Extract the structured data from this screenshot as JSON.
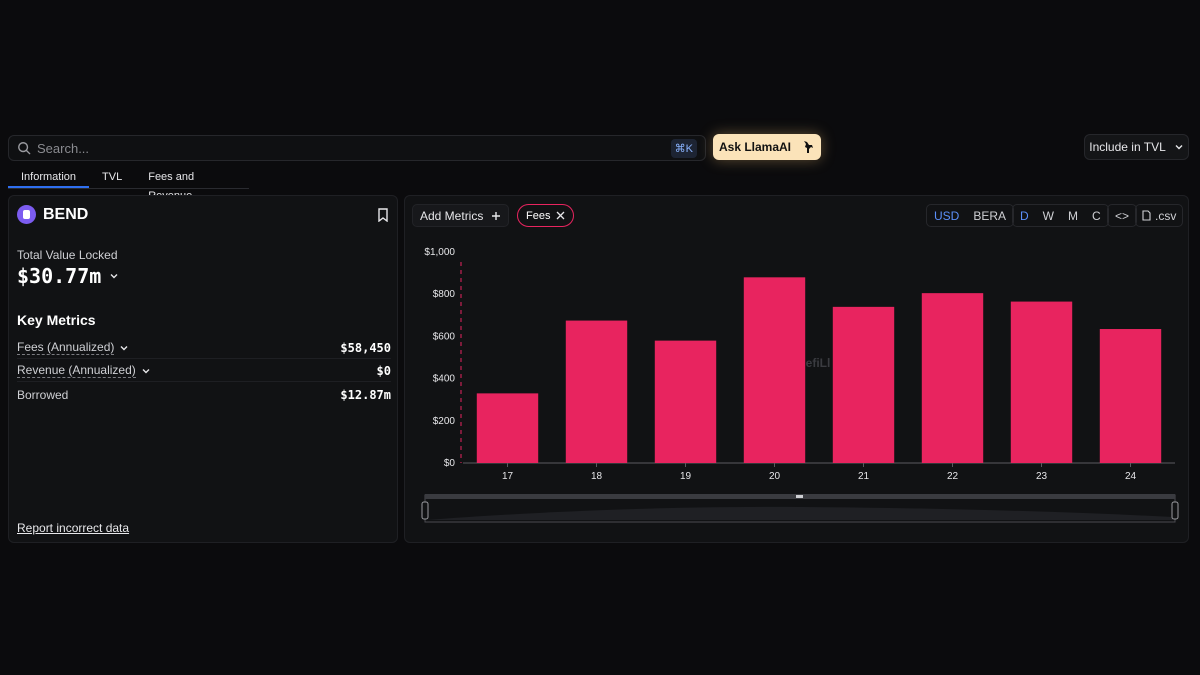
{
  "search": {
    "placeholder": "Search...",
    "shortcut": "⌘K"
  },
  "ask_button": {
    "label": "Ask LlamaAI"
  },
  "include_dropdown": {
    "label": "Include in TVL"
  },
  "tabs": [
    {
      "label": "Information",
      "active": true
    },
    {
      "label": "TVL",
      "active": false
    },
    {
      "label": "Fees and Revenue",
      "active": false
    }
  ],
  "protocol": {
    "name": "BEND",
    "tvl_label": "Total Value Locked",
    "tvl_value": "$30.77m",
    "key_metrics_title": "Key Metrics",
    "metrics": [
      {
        "label": "Fees (Annualized)",
        "value": "$58,450"
      },
      {
        "label": "Revenue (Annualized)",
        "value": "$0"
      },
      {
        "label": "Borrowed",
        "value": "$12.87m"
      }
    ],
    "report_link": "Report incorrect data"
  },
  "chart_controls": {
    "add_metrics": "Add Metrics",
    "metric_chip": "Fees",
    "currencies": [
      "USD",
      "BERA"
    ],
    "selected_currency": "USD",
    "periods": [
      "D",
      "W",
      "M",
      "C"
    ],
    "selected_period": "D",
    "embed": "<>",
    "csv": ".csv"
  },
  "colors": {
    "bar": "#e8245f",
    "accent": "#2f6ff0",
    "ask_bg": "#fbe3b9"
  },
  "chart_data": {
    "type": "bar",
    "categories": [
      "17",
      "18",
      "19",
      "20",
      "21",
      "22",
      "23",
      "24"
    ],
    "values": [
      330,
      675,
      580,
      880,
      740,
      805,
      765,
      635
    ],
    "ylim": [
      0,
      1000
    ],
    "y_ticks": [
      "$0",
      "$200",
      "$400",
      "$600",
      "$800",
      "$1,000"
    ],
    "watermark": "efiLl",
    "grid": false,
    "legend": "none"
  }
}
